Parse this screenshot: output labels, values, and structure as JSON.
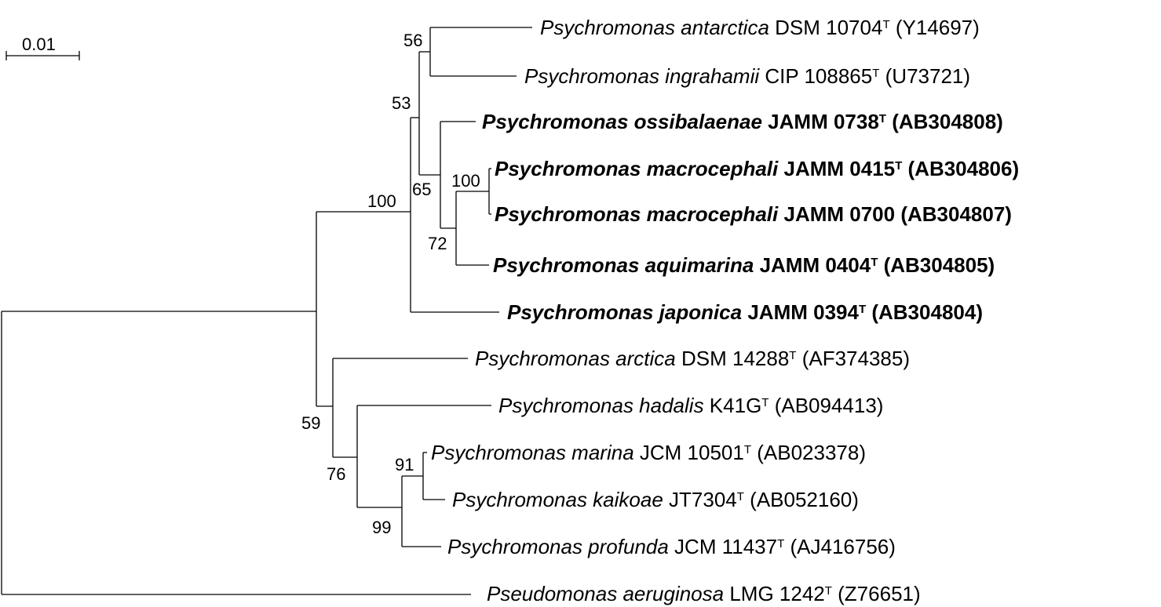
{
  "scale_bar": {
    "label": "0.01"
  },
  "taxa": [
    {
      "id": "antarctica",
      "genus": "Psychromonas",
      "species": "antarctica",
      "strain": "DSM 10704",
      "type_strain": true,
      "accession": "(Y14697)",
      "bold": false
    },
    {
      "id": "ingrahamii",
      "genus": "Psychromonas",
      "species": "ingrahamii",
      "strain": "CIP 108865",
      "type_strain": true,
      "accession": "(U73721)",
      "bold": false
    },
    {
      "id": "ossibalaenae",
      "genus": "Psychromonas",
      "species": "ossibalaenae",
      "strain": "JAMM 0738",
      "type_strain": true,
      "accession": "(AB304808)",
      "bold": true
    },
    {
      "id": "macrocephali1",
      "genus": "Psychromonas",
      "species": "macrocephali",
      "strain": "JAMM 0415",
      "type_strain": true,
      "accession": "(AB304806)",
      "bold": true
    },
    {
      "id": "macrocephali2",
      "genus": "Psychromonas",
      "species": "macrocephali",
      "strain": "JAMM 0700",
      "type_strain": false,
      "accession": "(AB304807)",
      "bold": true
    },
    {
      "id": "aquimarina",
      "genus": "Psychromonas",
      "species": "aquimarina",
      "strain": "JAMM 0404",
      "type_strain": true,
      "accession": "(AB304805)",
      "bold": true
    },
    {
      "id": "japonica",
      "genus": "Psychromonas",
      "species": "japonica",
      "strain": "JAMM 0394",
      "type_strain": true,
      "accession": "(AB304804)",
      "bold": true
    },
    {
      "id": "arctica",
      "genus": "Psychromonas",
      "species": "arctica",
      "strain": "DSM 14288",
      "type_strain": true,
      "accession": "(AF374385)",
      "bold": false
    },
    {
      "id": "hadalis",
      "genus": "Psychromonas",
      "species": "hadalis",
      "strain": "K41G",
      "type_strain": true,
      "accession": "(AB094413)",
      "bold": false
    },
    {
      "id": "marina",
      "genus": "Psychromonas",
      "species": "marina",
      "strain": "JCM 10501",
      "type_strain": true,
      "accession": "(AB023378)",
      "bold": false
    },
    {
      "id": "kaikoae",
      "genus": "Psychromonas",
      "species": "kaikoae",
      "strain": "JT7304",
      "type_strain": true,
      "accession": "(AB052160)",
      "bold": false
    },
    {
      "id": "profunda",
      "genus": "Psychromonas",
      "species": "profunda",
      "strain": "JCM 11437",
      "type_strain": true,
      "accession": "(AJ416756)",
      "bold": false
    },
    {
      "id": "aeruginosa",
      "genus": "Pseudomonas",
      "species": "aeruginosa",
      "strain": "LMG 1242",
      "type_strain": true,
      "accession": "(Z76651)",
      "bold": false
    }
  ],
  "type_strain_mark": "T",
  "bootstrap_values": [
    "56",
    "53",
    "100",
    "65",
    "100",
    "72",
    "59",
    "76",
    "91",
    "99"
  ]
}
